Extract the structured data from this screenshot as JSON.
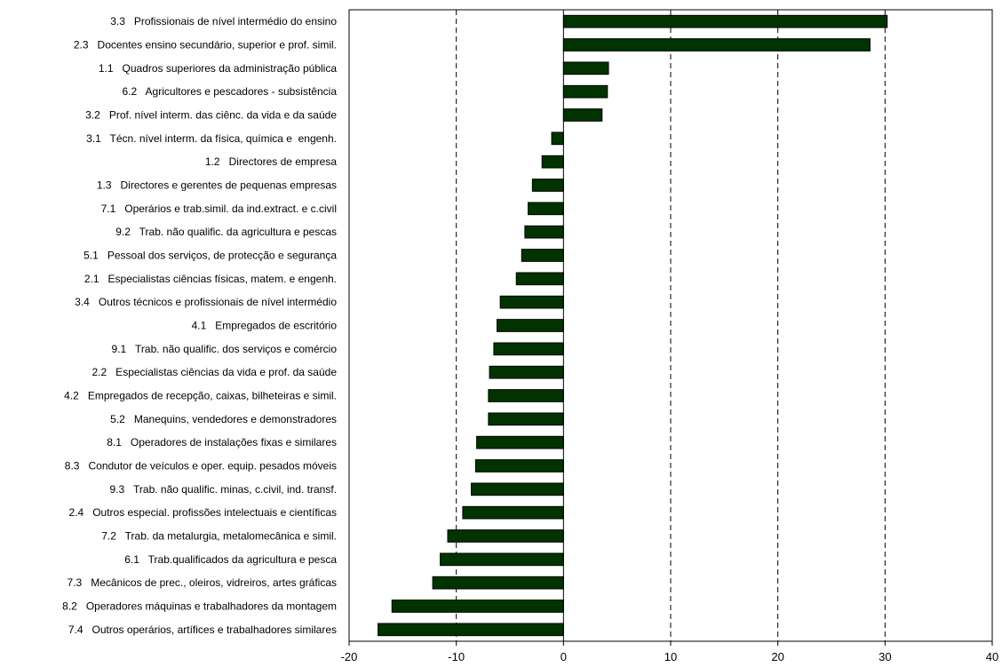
{
  "chart_data": {
    "type": "bar",
    "orientation": "horizontal",
    "title": "",
    "xlabel": "",
    "ylabel": "",
    "xlim": [
      -20,
      40
    ],
    "xticks": [
      -20,
      -10,
      0,
      10,
      20,
      30,
      40
    ],
    "xtick_labels": [
      "-20",
      "-10",
      "0",
      "10",
      "20",
      "30",
      "40"
    ],
    "grid": "vertical dashed lines at major ticks",
    "legend": "none",
    "bar_color": "#003300",
    "categories": [
      "3.3   Profissionais de nível intermédio do ensino",
      "2.3   Docentes ensino secundário, superior e prof. simil.",
      "1.1   Quadros superiores da administração pública",
      "6.2   Agricultores e pescadores - subsistência",
      "3.2   Prof. nível interm. das ciênc. da vida e da saúde",
      "3.1   Técn. nível interm. da física, química e  engenh.",
      "1.2   Directores de empresa",
      "1.3   Directores e gerentes de pequenas empresas",
      "7.1   Operários e trab.simil. da ind.extract. e c.civil",
      "9.2   Trab. não qualific. da agricultura e pescas",
      "5.1   Pessoal dos serviços, de protecção e segurança",
      "2.1   Especialistas ciências físicas, matem. e engenh.",
      "3.4   Outros técnicos e profissionais de nível intermédio",
      "4.1   Empregados de escritório",
      "9.1   Trab. não qualific. dos serviços e comércio",
      "2.2   Especialistas ciências da vida e prof. da saúde",
      "4.2   Empregados de recepção, caixas, bilheteiras e simil.",
      "5.2   Manequins, vendedores e demonstradores",
      "8.1   Operadores de instalações fixas e similares",
      "8.3   Condutor de veículos e oper. equip. pesados móveis",
      "9.3   Trab. não qualific. minas, c.civil, ind. transf.",
      "2.4   Outros especial. profissões intelectuais e científicas",
      "7.2   Trab. da metalurgia, metalomecânica e simil.",
      "6.1   Trab.qualificados da agricultura e pesca",
      "7.3   Mecânicos de prec., oleiros, vidreiros, artes gráficas",
      "8.2   Operadores máquinas e trabalhadores da montagem",
      "7.4   Outros operários, artífices e trabalhadores similares"
    ],
    "values": [
      30.2,
      28.6,
      4.2,
      4.1,
      3.6,
      -1.1,
      -2.0,
      -2.9,
      -3.3,
      -3.6,
      -3.9,
      -4.4,
      -5.9,
      -6.2,
      -6.5,
      -6.9,
      -7.0,
      -7.0,
      -8.1,
      -8.2,
      -8.6,
      -9.4,
      -10.8,
      -11.5,
      -12.2,
      -16.0,
      -17.3
    ]
  }
}
